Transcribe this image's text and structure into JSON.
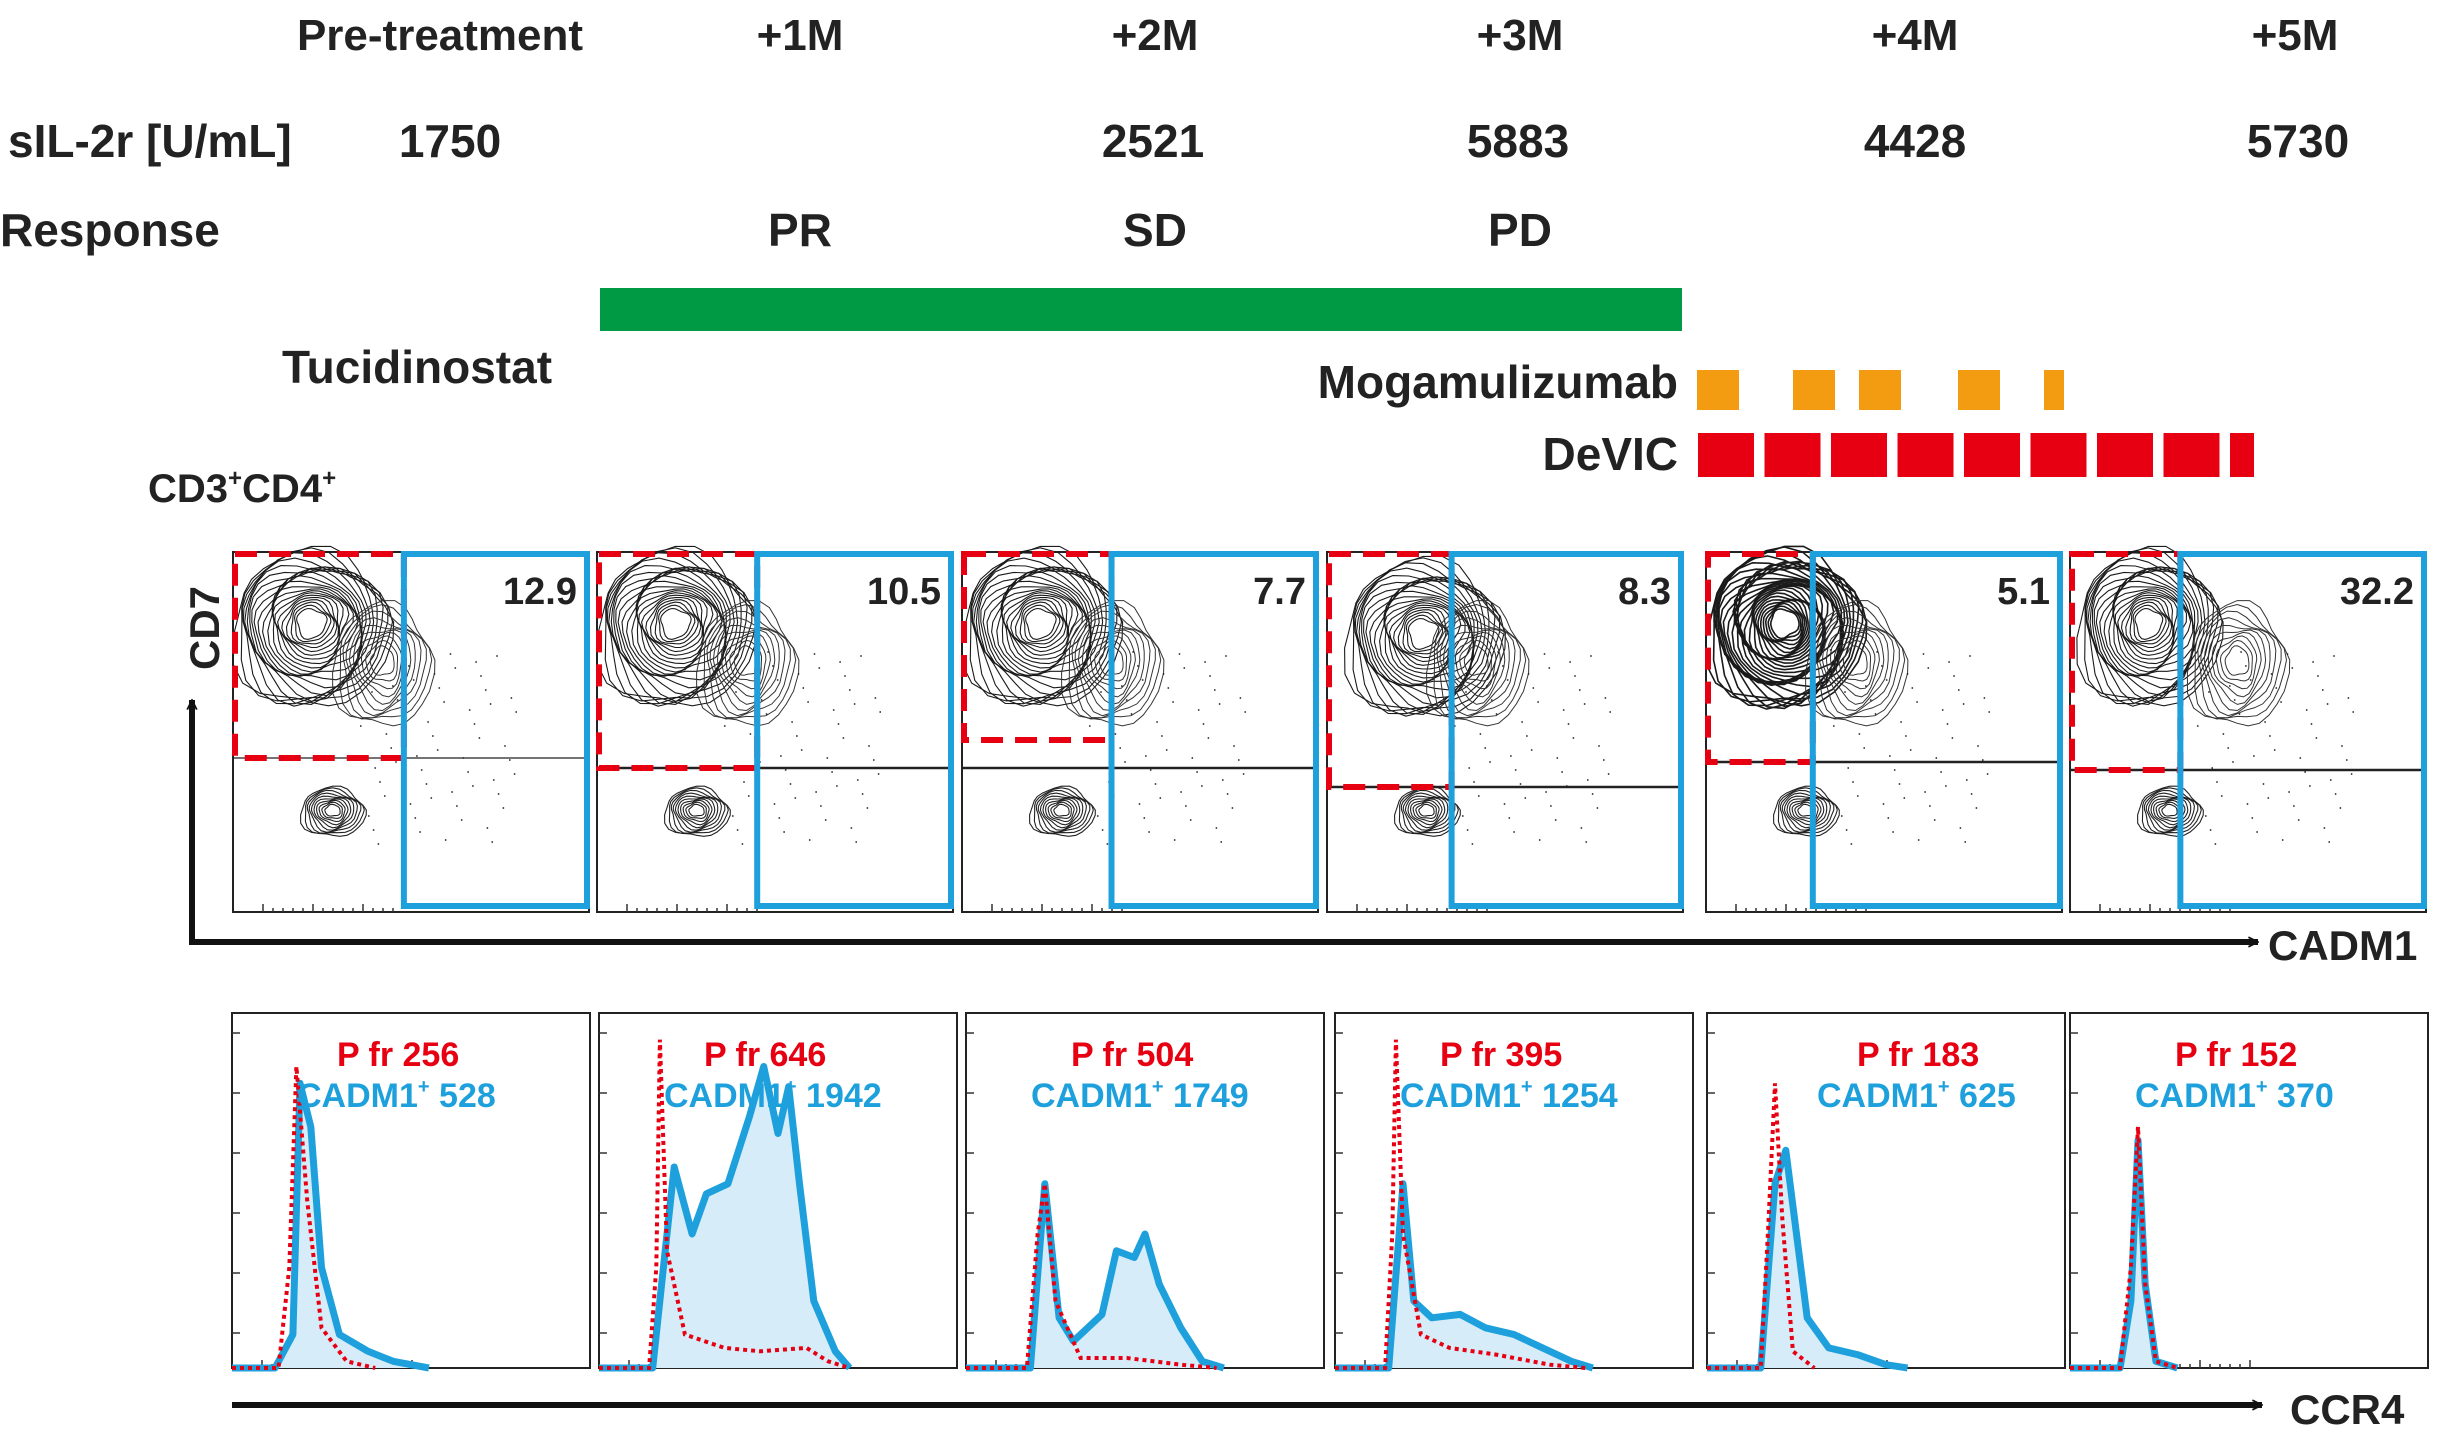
{
  "timepoints": [
    "Pre-treatment",
    "+1M",
    "+2M",
    "+3M",
    "+4M",
    "+5M"
  ],
  "sil2r": {
    "label": "sIL-2r [U/mL]",
    "values": [
      "1750",
      "",
      "2521",
      "5883",
      "4428",
      "5730"
    ]
  },
  "response": {
    "label": "Response",
    "values": [
      "",
      "PR",
      "SD",
      "PD",
      "",
      ""
    ]
  },
  "treatments": {
    "tucidinostat": {
      "label": "Tucidinostat",
      "color": "#009a44"
    },
    "mogamulizumab": {
      "label": "Mogamulizumab",
      "color": "#f39c12",
      "doses": 5
    },
    "devic": {
      "label": "DeVIC",
      "color": "#e60012",
      "doses": 9
    }
  },
  "flow": {
    "gate_title_main": "CD3",
    "gate_title_sup1": "+",
    "gate_title_mid": "CD4",
    "gate_title_sup2": "+",
    "y_axis": "CD7",
    "x_axis": "CADM1",
    "cadm1_percentages": [
      "12.9",
      "10.5",
      "7.7",
      "8.3",
      "5.1",
      "32.2"
    ],
    "pfr_color": "#e60012",
    "cadm1_color": "#1ea0dc"
  },
  "ccr4": {
    "x_axis": "CCR4",
    "pfr_label": "P fr",
    "cadm1_label": "CADM1",
    "cadm1_sup": "+",
    "pfr_mfi": [
      "256",
      "646",
      "504",
      "395",
      "183",
      "152"
    ],
    "cadm1_mfi": [
      "528",
      "1942",
      "1749",
      "1254",
      "625",
      "370"
    ]
  }
}
